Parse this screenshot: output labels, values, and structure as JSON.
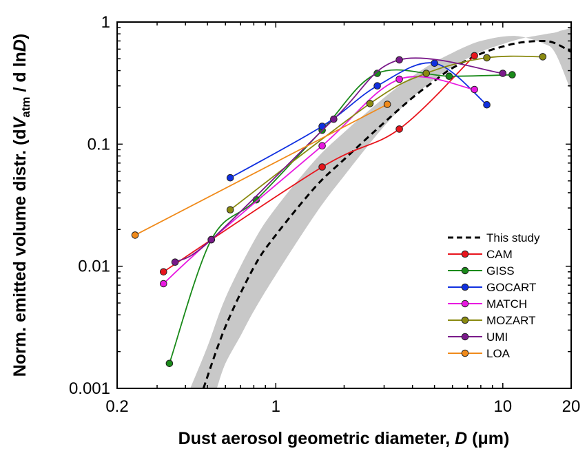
{
  "chart_data": {
    "type": "line",
    "x_scale": "log",
    "y_scale": "log",
    "xlim": [
      0.2,
      20
    ],
    "ylim": [
      0.001,
      1
    ],
    "x_ticks": [
      0.2,
      1,
      10,
      20
    ],
    "x_tick_labels": [
      "0.2",
      "1",
      "10",
      "20"
    ],
    "y_ticks": [
      0.001,
      0.01,
      0.1,
      1
    ],
    "y_tick_labels": [
      "0.001",
      "0.01",
      "0.1",
      "1"
    ],
    "xlabel": {
      "prefix": "Dust aerosol geometric diameter, ",
      "italic": "D",
      "suffix": " (μm)"
    },
    "ylabel": {
      "prefix": "Norm. emitted volume distr. (d",
      "italic_v": "V",
      "subscript": "atm",
      "middle": " / d ln",
      "italic_d": "D",
      "suffix": ")"
    },
    "grid": false,
    "legend_position": "bottom-right",
    "this_study": {
      "name": "This study",
      "color": "#000000",
      "style": "dashed",
      "x": [
        0.48,
        0.6,
        0.8,
        1.0,
        1.5,
        2,
        3,
        4,
        5,
        6,
        8,
        10,
        12,
        15,
        17,
        20
      ],
      "y": [
        0.001,
        0.0032,
        0.0098,
        0.018,
        0.045,
        0.075,
        0.15,
        0.24,
        0.33,
        0.42,
        0.55,
        0.63,
        0.68,
        0.7,
        0.67,
        0.57
      ]
    },
    "uncertainty_band": {
      "color": "#c8c8c8",
      "x_upper": [
        0.42,
        0.5,
        0.6,
        0.8,
        1.0,
        1.5,
        2,
        3,
        4,
        5,
        6,
        7,
        8,
        10,
        12,
        15,
        17,
        20
      ],
      "y_upper": [
        0.001,
        0.0022,
        0.0055,
        0.016,
        0.03,
        0.075,
        0.125,
        0.24,
        0.36,
        0.47,
        0.56,
        0.64,
        0.7,
        0.76,
        0.76,
        0.67,
        0.56,
        0.27
      ],
      "x_lower": [
        20,
        19,
        18,
        17,
        15,
        12,
        10,
        8,
        6,
        5,
        4,
        3,
        2,
        1.5,
        1.0,
        0.8,
        0.7,
        0.6,
        0.55
      ],
      "y_lower": [
        0.9,
        0.87,
        0.85,
        0.82,
        0.79,
        0.73,
        0.66,
        0.57,
        0.43,
        0.34,
        0.24,
        0.14,
        0.055,
        0.027,
        0.0085,
        0.0043,
        0.0027,
        0.0016,
        0.001
      ]
    },
    "series": [
      {
        "name": "CAM",
        "color": "#e8141c",
        "x": [
          0.32,
          1.6,
          3.5,
          7.5
        ],
        "y": [
          0.009,
          0.065,
          0.133,
          0.53
        ]
      },
      {
        "name": "GISS",
        "color": "#1a8a1a",
        "x": [
          0.34,
          0.52,
          0.82,
          1.6,
          2.8,
          5.8,
          11.0
        ],
        "y": [
          0.0016,
          0.0165,
          0.035,
          0.13,
          0.38,
          0.36,
          0.37
        ]
      },
      {
        "name": "GOCART",
        "color": "#1030e0",
        "x": [
          0.63,
          1.6,
          2.8,
          5.0,
          8.5
        ],
        "y": [
          0.053,
          0.14,
          0.3,
          0.46,
          0.21
        ]
      },
      {
        "name": "MATCH",
        "color": "#e818e0",
        "x": [
          0.32,
          0.52,
          1.6,
          3.5,
          7.5
        ],
        "y": [
          0.0072,
          0.0165,
          0.097,
          0.34,
          0.28
        ]
      },
      {
        "name": "MOZART",
        "color": "#8a8a10",
        "x": [
          0.63,
          2.6,
          4.6,
          8.5,
          15.0
        ],
        "y": [
          0.029,
          0.215,
          0.38,
          0.51,
          0.52
        ]
      },
      {
        "name": "UMI",
        "color": "#7a1a8a",
        "x": [
          0.36,
          0.52,
          1.8,
          3.5,
          10.0
        ],
        "y": [
          0.0108,
          0.0165,
          0.16,
          0.49,
          0.38
        ]
      },
      {
        "name": "LOA",
        "color": "#f08a1a",
        "x": [
          0.24,
          3.1
        ],
        "y": [
          0.018,
          0.212
        ]
      }
    ]
  }
}
